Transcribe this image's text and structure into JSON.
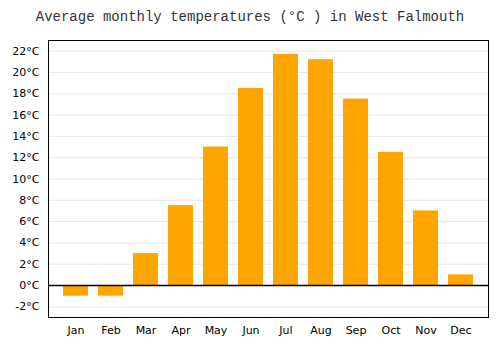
{
  "chart_data": {
    "type": "bar",
    "title": "Average monthly temperatures (°C ) in West Falmouth",
    "categories": [
      "Jan",
      "Feb",
      "Mar",
      "Apr",
      "May",
      "Jun",
      "Jul",
      "Aug",
      "Sep",
      "Oct",
      "Nov",
      "Dec"
    ],
    "values": [
      -1.0,
      -1.0,
      3.0,
      7.5,
      13.0,
      18.5,
      21.7,
      21.2,
      17.5,
      12.5,
      7.0,
      1.0
    ],
    "color": "#FFA500",
    "ylim": [
      -3,
      23
    ],
    "yticks": [
      {
        "value": -2,
        "label": "-2°C"
      },
      {
        "value": 0,
        "label": "0°C"
      },
      {
        "value": 2,
        "label": "2°C"
      },
      {
        "value": 4,
        "label": "4°C"
      },
      {
        "value": 6,
        "label": "6°C"
      },
      {
        "value": 8,
        "label": "8°C"
      },
      {
        "value": 10,
        "label": "10°C"
      },
      {
        "value": 12,
        "label": "12°C"
      },
      {
        "value": 14,
        "label": "14°C"
      },
      {
        "value": 16,
        "label": "16°C"
      },
      {
        "value": 18,
        "label": "18°C"
      },
      {
        "value": 20,
        "label": "20°C"
      },
      {
        "value": 22,
        "label": "22°C"
      }
    ],
    "grid": true
  }
}
